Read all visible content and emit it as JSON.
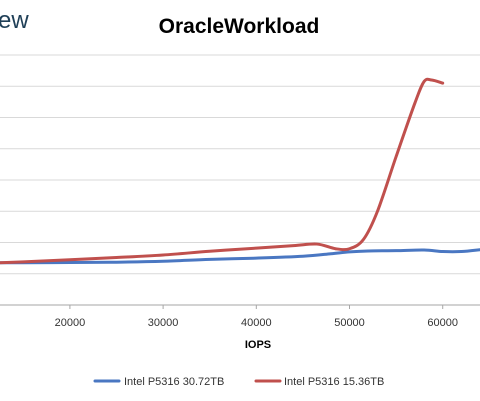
{
  "header": {
    "logo_fragment": "ew"
  },
  "chart_data": {
    "type": "line",
    "title": "OracleWorkload",
    "xlabel": "IOPS",
    "ylabel": "",
    "x_ticks": [
      20000,
      30000,
      40000,
      50000,
      60000
    ],
    "x_tick_labels": [
      "20000",
      "30000",
      "40000",
      "50000",
      "60000"
    ],
    "xlim": [
      12500,
      64000
    ],
    "ylim": [
      0,
      8
    ],
    "y_gridlines": [
      1,
      2,
      3,
      4,
      5,
      6,
      7,
      8
    ],
    "grid": true,
    "legend_position": "bottom",
    "series": [
      {
        "name": "Intel P5316 30.72TB",
        "color": "#4a77c2",
        "x": [
          12500,
          15000,
          20000,
          25000,
          30000,
          35000,
          40000,
          45000,
          48000,
          50000,
          52000,
          55000,
          58000,
          60000,
          62000,
          64000
        ],
        "y": [
          1.35,
          1.35,
          1.36,
          1.37,
          1.4,
          1.46,
          1.5,
          1.56,
          1.64,
          1.7,
          1.73,
          1.74,
          1.76,
          1.71,
          1.71,
          1.77
        ]
      },
      {
        "name": "Intel P5316 15.36TB",
        "color": "#c0504d",
        "x": [
          12500,
          15000,
          20000,
          25000,
          30000,
          35000,
          40000,
          44000,
          46500,
          48500,
          50000,
          51500,
          53000,
          55000,
          57000,
          58000,
          58800,
          60000
        ],
        "y": [
          1.35,
          1.38,
          1.45,
          1.52,
          1.6,
          1.72,
          1.82,
          1.9,
          1.95,
          1.8,
          1.8,
          2.1,
          3.0,
          4.75,
          6.45,
          7.15,
          7.2,
          7.1
        ]
      }
    ]
  }
}
